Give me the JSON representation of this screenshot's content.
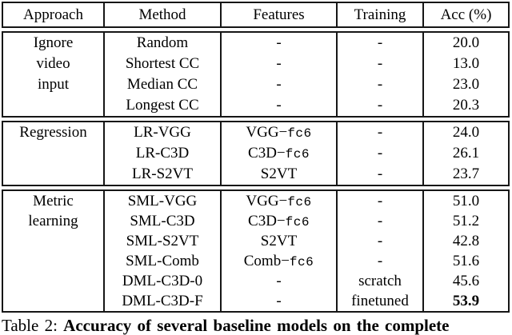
{
  "colors": {
    "text": "#000000",
    "border": "#161616",
    "background": "#ffffff"
  },
  "table": {
    "headers": [
      "Approach",
      "Method",
      "Features",
      "Training",
      "Acc (%)"
    ],
    "sections": [
      {
        "approach": [
          "Ignore",
          "video",
          "input"
        ],
        "rows": [
          {
            "method": "Random",
            "feat": "-",
            "feat_mono": "",
            "training": "-",
            "acc": "20.0",
            "acc_bold": false
          },
          {
            "method": "Shortest CC",
            "feat": "-",
            "feat_mono": "",
            "training": "-",
            "acc": "13.0",
            "acc_bold": false
          },
          {
            "method": "Median CC",
            "feat": "-",
            "feat_mono": "",
            "training": "-",
            "acc": "23.0",
            "acc_bold": false
          },
          {
            "method": "Longest CC",
            "feat": "-",
            "feat_mono": "",
            "training": "-",
            "acc": "20.3",
            "acc_bold": false
          }
        ]
      },
      {
        "approach": [
          "Regression"
        ],
        "rows": [
          {
            "method": "LR-VGG",
            "feat": "VGG−",
            "feat_mono": "fc6",
            "training": "-",
            "acc": "24.0",
            "acc_bold": false
          },
          {
            "method": "LR-C3D",
            "feat": "C3D−",
            "feat_mono": "fc6",
            "training": "-",
            "acc": "26.1",
            "acc_bold": false
          },
          {
            "method": "LR-S2VT",
            "feat": "S2VT",
            "feat_mono": "",
            "training": "-",
            "acc": "23.7",
            "acc_bold": false
          }
        ]
      },
      {
        "approach": [
          "Metric",
          "learning"
        ],
        "rows": [
          {
            "method": "SML-VGG",
            "feat": "VGG−",
            "feat_mono": "fc6",
            "training": "-",
            "acc": "51.0",
            "acc_bold": false
          },
          {
            "method": "SML-C3D",
            "feat": "C3D−",
            "feat_mono": "fc6",
            "training": "-",
            "acc": "51.2",
            "acc_bold": false
          },
          {
            "method": "SML-S2VT",
            "feat": "S2VT",
            "feat_mono": "",
            "training": "-",
            "acc": "42.8",
            "acc_bold": false
          },
          {
            "method": "SML-Comb",
            "feat": "Comb−",
            "feat_mono": "fc6",
            "training": "-",
            "acc": "51.6",
            "acc_bold": false
          },
          {
            "method": "DML-C3D-0",
            "feat": "-",
            "feat_mono": "",
            "training": "scratch",
            "acc": "45.6",
            "acc_bold": false
          },
          {
            "method": "DML-C3D-F",
            "feat": "-",
            "feat_mono": "",
            "training": "finetuned",
            "acc": "53.9",
            "acc_bold": true
          }
        ]
      }
    ]
  },
  "caption": {
    "label": "Table 2:",
    "text": "Accuracy of several baseline models on the complete"
  }
}
